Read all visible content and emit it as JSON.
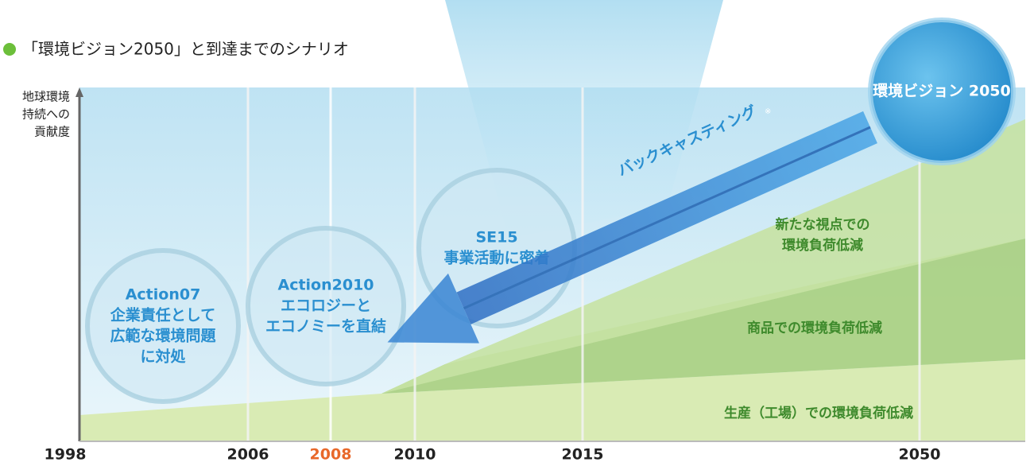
{
  "title": "「環境ビジョン2050」と到達までのシナリオ",
  "y_axis_label": [
    "地球環境",
    "持続への",
    "貢献度"
  ],
  "years": [
    {
      "label": "1998",
      "color": "#222222"
    },
    {
      "label": "2006",
      "color": "#222222"
    },
    {
      "label": "2008",
      "color": "#e8682a"
    },
    {
      "label": "2010",
      "color": "#222222"
    },
    {
      "label": "2015",
      "color": "#222222"
    },
    {
      "label": "2050",
      "color": "#222222"
    }
  ],
  "circles": [
    {
      "lines": [
        "Action07",
        "企業責任として",
        "広範な環境問題",
        "に対処"
      ]
    },
    {
      "lines": [
        "Action2010",
        "エコロジーと",
        "エコノミーを直結"
      ]
    },
    {
      "lines": [
        "SE15",
        "事業活動に密着"
      ]
    },
    {
      "lines": [
        "環境ビジョン 2050"
      ]
    }
  ],
  "arrow_label": "バックキャスティング",
  "arrow_note": "※",
  "layers": [
    {
      "lines": [
        "新たな視点での",
        "環境負荷低減"
      ]
    },
    {
      "lines": [
        "商品での環境負荷低減"
      ]
    },
    {
      "lines": [
        "生産（工場）での環境負荷低減"
      ]
    }
  ]
}
